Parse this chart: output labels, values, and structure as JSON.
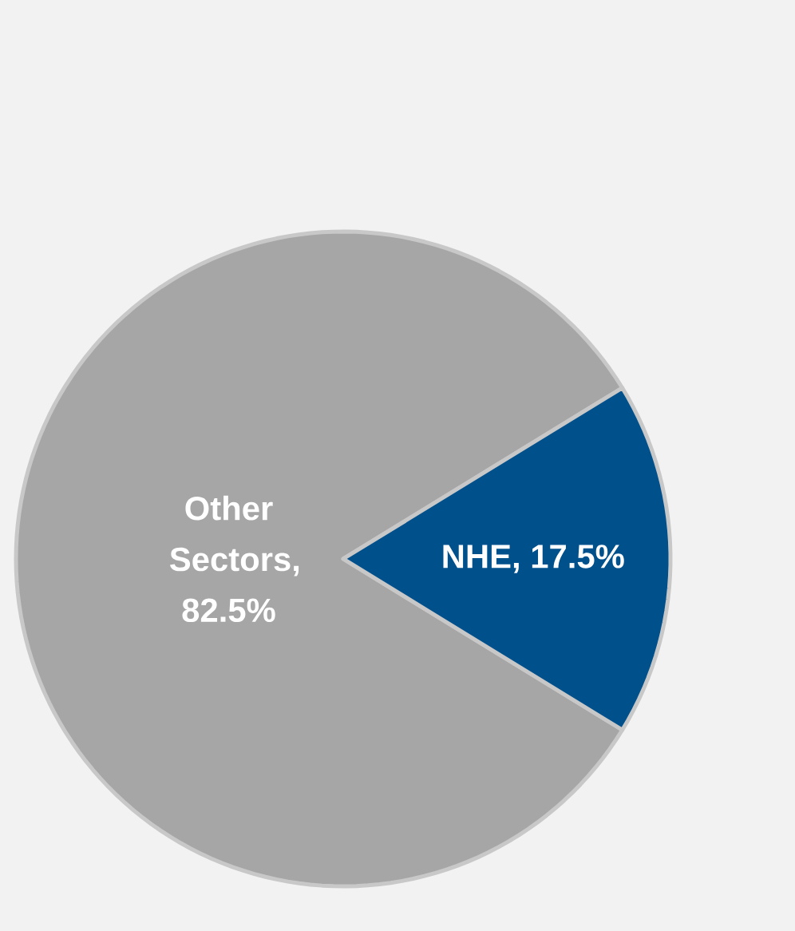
{
  "chart_data": {
    "type": "pie",
    "values": [
      82.5,
      17.5
    ],
    "value_labels": [
      "Other Sectors, 82.5%",
      "NHE, 17.5%"
    ],
    "colors": [
      "#a6a6a6",
      "#00508c"
    ]
  }
}
